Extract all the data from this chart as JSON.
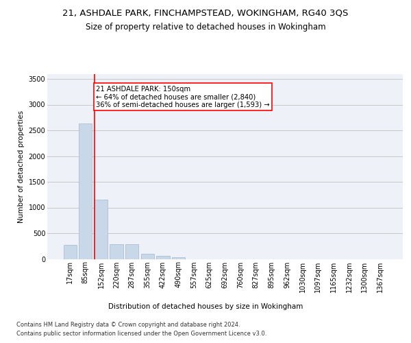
{
  "title_line1": "21, ASHDALE PARK, FINCHAMPSTEAD, WOKINGHAM, RG40 3QS",
  "title_line2": "Size of property relative to detached houses in Wokingham",
  "xlabel": "Distribution of detached houses by size in Wokingham",
  "ylabel": "Number of detached properties",
  "bar_color": "#c8d8e8",
  "bar_edge_color": "#a0b8cc",
  "annotation_line_color": "red",
  "annotation_box_text": "21 ASHDALE PARK: 150sqm\n← 64% of detached houses are smaller (2,840)\n36% of semi-detached houses are larger (1,593) →",
  "annotation_box_color": "white",
  "annotation_box_edge_color": "red",
  "categories": [
    "17sqm",
    "85sqm",
    "152sqm",
    "220sqm",
    "287sqm",
    "355sqm",
    "422sqm",
    "490sqm",
    "557sqm",
    "625sqm",
    "692sqm",
    "760sqm",
    "827sqm",
    "895sqm",
    "962sqm",
    "1030sqm",
    "1097sqm",
    "1165sqm",
    "1232sqm",
    "1300sqm",
    "1367sqm"
  ],
  "values": [
    275,
    2630,
    1150,
    290,
    285,
    100,
    55,
    35,
    0,
    0,
    0,
    0,
    0,
    0,
    0,
    0,
    0,
    0,
    0,
    0,
    0
  ],
  "ylim": [
    0,
    3600
  ],
  "yticks": [
    0,
    500,
    1000,
    1500,
    2000,
    2500,
    3000,
    3500
  ],
  "grid_color": "#c8c8c8",
  "background_color": "#eef2f8",
  "footer_line1": "Contains HM Land Registry data © Crown copyright and database right 2024.",
  "footer_line2": "Contains public sector information licensed under the Open Government Licence v3.0.",
  "title_fontsize": 9.5,
  "subtitle_fontsize": 8.5,
  "axis_label_fontsize": 7.5,
  "tick_fontsize": 7,
  "footer_fontsize": 6
}
